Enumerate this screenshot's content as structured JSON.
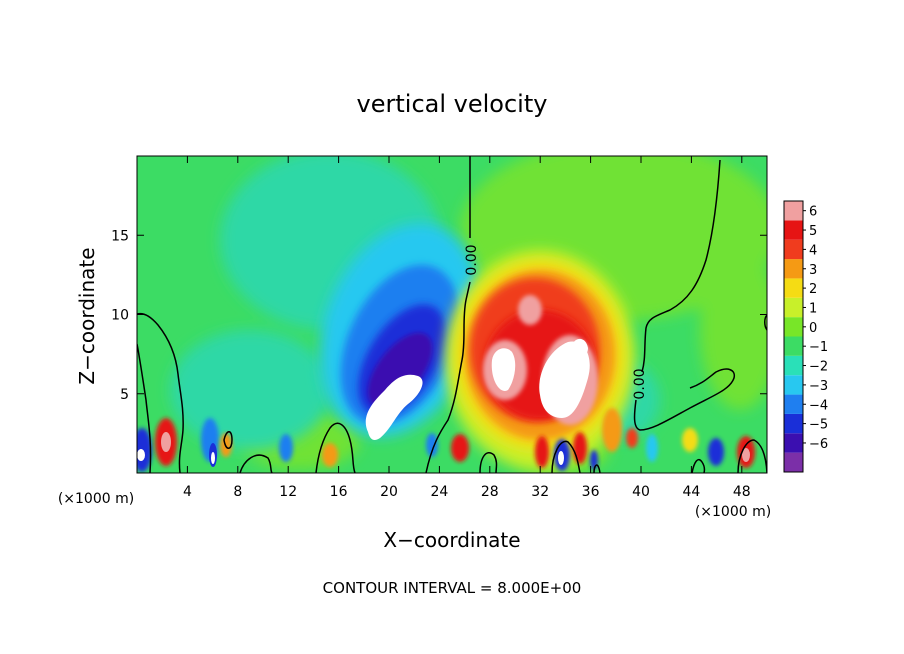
{
  "chart_data": {
    "type": "heatmap",
    "title": "vertical velocity",
    "xlabel": "X−coordinate",
    "ylabel": "Z−coordinate",
    "x_unit_left": "(×1000 m)",
    "x_unit_right": "(×1000 m)",
    "xlim": [
      0,
      50
    ],
    "ylim": [
      0,
      20
    ],
    "x_ticks": [
      4,
      8,
      12,
      16,
      20,
      24,
      28,
      32,
      36,
      40,
      44,
      48
    ],
    "y_ticks": [
      5,
      10,
      15
    ],
    "colorbar": {
      "levels": [
        "6",
        "5",
        "4",
        "3",
        "2",
        "1",
        "0",
        "−1",
        "−2",
        "−3",
        "−4",
        "−5",
        "−6"
      ],
      "colors": [
        "#7b2fa8",
        "#3b0fb0",
        "#1a2fd8",
        "#1f7ff0",
        "#28c8f0",
        "#2ae0b8",
        "#3cdc64",
        "#78e628",
        "#c8f02a",
        "#f5dc14",
        "#f59a14",
        "#f03c1e",
        "#e61414",
        "#f0a0a0"
      ]
    },
    "contour_label": "0.00",
    "footer": "CONTOUR INTERVAL = 8.000E+00"
  },
  "colors": {
    "background": "#3cdc64",
    "updraft_core": "#ffffff",
    "contour": "#000000"
  }
}
